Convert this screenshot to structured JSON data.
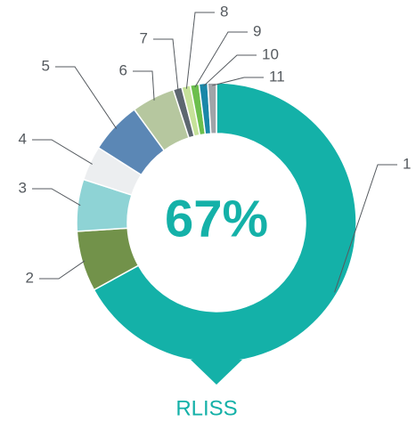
{
  "chart_data": {
    "type": "donut",
    "title": "RLISS",
    "center_label": "67%",
    "categories": [
      "1",
      "2",
      "3",
      "4",
      "5",
      "6",
      "7",
      "8",
      "9",
      "10",
      "11"
    ],
    "values": [
      67,
      7,
      6,
      4,
      6,
      5,
      1,
      1,
      1,
      1,
      1
    ],
    "colors": [
      "#14b1a8",
      "#72924a",
      "#8ed3d5",
      "#eceef0",
      "#5b87b5",
      "#b6c79f",
      "#5d6770",
      "#c6e29a",
      "#6cbf4d",
      "#1a87a8",
      "#a1a4a8"
    ]
  }
}
